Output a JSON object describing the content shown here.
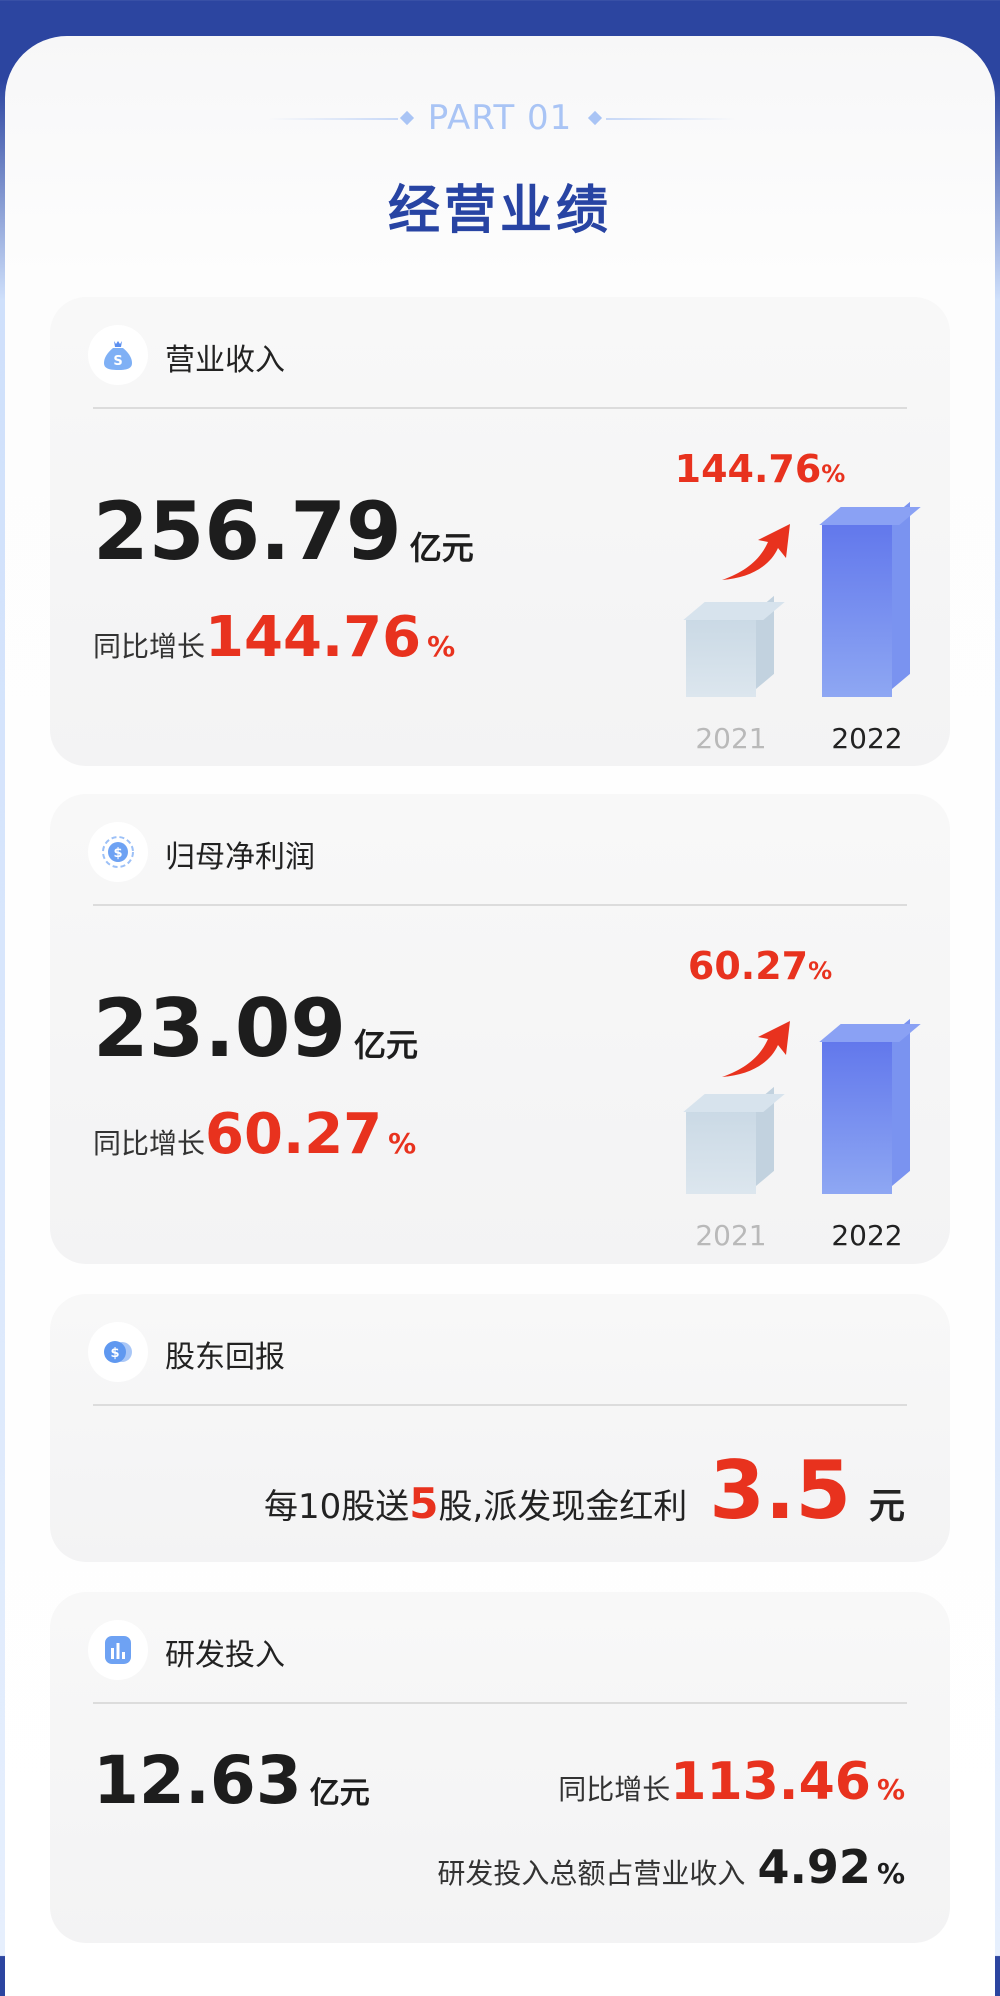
{
  "header": {
    "part": "PART 01",
    "title": "经营业绩"
  },
  "colors": {
    "brand_blue": "#2844a3",
    "accent_red": "#e8321e",
    "bar_2021": "#d3dfe8",
    "bar_2022": "#6b82ee"
  },
  "revenue": {
    "icon": "money-bag-icon",
    "title": "营业收入",
    "value": "256.79",
    "unit": "亿元",
    "yoy_label": "同比增长",
    "yoy_value": "144.76",
    "pct": "%",
    "chart": {
      "growth": "144.76",
      "years": [
        "2021",
        "2022"
      ]
    }
  },
  "net_profit": {
    "icon": "coin-cycle-icon",
    "title": "归母净利润",
    "value": "23.09",
    "unit": "亿元",
    "yoy_label": "同比增长",
    "yoy_value": "60.27",
    "pct": "%",
    "chart": {
      "growth": "60.27",
      "years": [
        "2021",
        "2022"
      ]
    }
  },
  "dividend": {
    "icon": "coins-icon",
    "title": "股东回报",
    "text1": "每10股送",
    "shares": "5",
    "text2": "股,派发现金红利",
    "cash": "3.5",
    "unit": "元"
  },
  "rnd": {
    "icon": "bar-chart-icon",
    "title": "研发投入",
    "value": "12.63",
    "unit": "亿元",
    "yoy_label": "同比增长",
    "yoy_value": "113.46",
    "pct": "%",
    "ratio_label": "研发投入总额占营业收入",
    "ratio_value": "4.92"
  }
}
